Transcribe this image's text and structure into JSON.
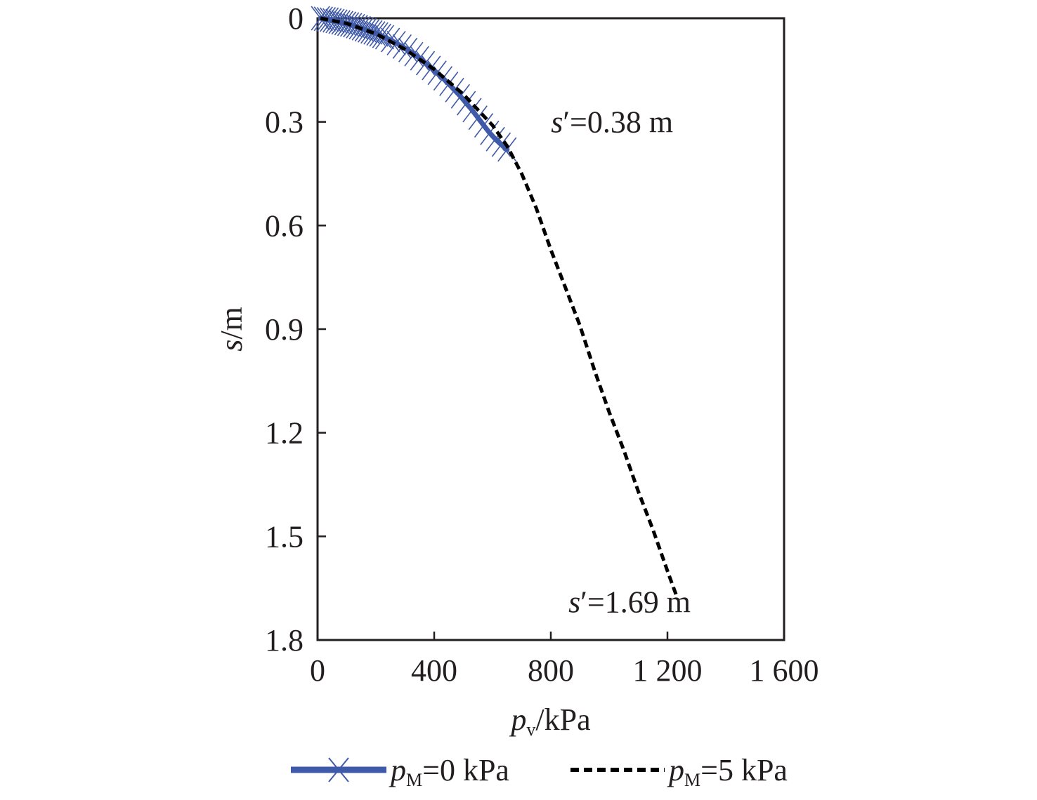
{
  "chart_data": {
    "type": "line",
    "title": "",
    "xlabel": {
      "main": "p",
      "sub": "v",
      "unit": "/kPa"
    },
    "ylabel": {
      "main": "s",
      "unit": "/m"
    },
    "xlim": [
      0,
      1600
    ],
    "ylim": [
      0,
      1.8
    ],
    "y_inverted": true,
    "x_ticks": [
      0,
      400,
      800,
      1200,
      1600
    ],
    "x_tick_labels": [
      "0",
      "400",
      "800",
      "1 200",
      "1 600"
    ],
    "y_ticks": [
      0,
      0.3,
      0.6,
      0.9,
      1.2,
      1.5,
      1.8
    ],
    "y_tick_labels": [
      "0",
      "0.3",
      "0.6",
      "0.9",
      "1.2",
      "1.5",
      "1.8"
    ],
    "grid": false,
    "legend_position": "bottom",
    "series": [
      {
        "name": {
          "main": "p",
          "sub": "M",
          "rest": "=0 kPa"
        },
        "color": "#3f5aa8",
        "style": "solid-with-x-markers",
        "x": [
          10,
          20,
          30,
          40,
          50,
          60,
          70,
          80,
          90,
          100,
          110,
          120,
          130,
          140,
          150,
          160,
          170,
          180,
          190,
          200,
          210,
          220,
          230,
          250,
          270,
          290,
          310,
          330,
          350,
          370,
          390,
          410,
          430,
          450,
          470,
          490,
          510,
          530,
          550,
          570,
          590,
          610,
          630,
          650
        ],
        "y": [
          0.0,
          0.0015,
          0.003,
          0.004,
          0.006,
          0.008,
          0.01,
          0.012,
          0.014,
          0.016,
          0.018,
          0.02,
          0.023,
          0.026,
          0.029,
          0.032,
          0.035,
          0.038,
          0.041,
          0.044,
          0.047,
          0.051,
          0.055,
          0.063,
          0.072,
          0.082,
          0.092,
          0.104,
          0.116,
          0.13,
          0.144,
          0.158,
          0.174,
          0.19,
          0.208,
          0.226,
          0.246,
          0.266,
          0.288,
          0.31,
          0.332,
          0.35,
          0.366,
          0.38
        ]
      },
      {
        "name": {
          "main": "p",
          "sub": "M",
          "rest": "=5 kPa"
        },
        "color": "#000000",
        "style": "dashed",
        "x": [
          10,
          100,
          200,
          300,
          400,
          500,
          600,
          650,
          700,
          750,
          800,
          850,
          900,
          950,
          1000,
          1050,
          1100,
          1150,
          1200,
          1230
        ],
        "y": [
          0.0,
          0.015,
          0.045,
          0.09,
          0.148,
          0.22,
          0.31,
          0.37,
          0.45,
          0.55,
          0.67,
          0.78,
          0.89,
          1.02,
          1.14,
          1.25,
          1.37,
          1.48,
          1.6,
          1.67
        ]
      }
    ],
    "annotations": [
      {
        "italic": "s",
        "rest": "′=0.38 m",
        "x": 1010,
        "y": 0.33
      },
      {
        "italic": "s",
        "rest": "′=1.69 m",
        "x": 1070,
        "y": 1.72
      }
    ]
  }
}
